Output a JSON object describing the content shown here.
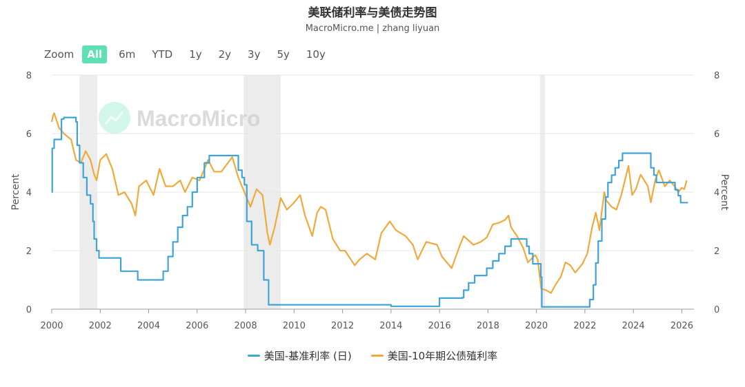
{
  "header": {
    "title": "美联储利率与美债走势图",
    "subtitle": "MacroMicro.me | zhang liyuan"
  },
  "zoom": {
    "label": "Zoom",
    "buttons": [
      "All",
      "6m",
      "YTD",
      "1y",
      "2y",
      "3y",
      "5y",
      "10y"
    ],
    "active": "All"
  },
  "watermark": "MacroMicro",
  "chart_data": {
    "type": "line",
    "title": "美联储利率与美债走势图",
    "subtitle": "MacroMicro.me | zhang liyuan",
    "ylabel": "Percent",
    "ylabel_right": "Percent",
    "xlim": [
      2000,
      2026.5
    ],
    "ylim": [
      0,
      8
    ],
    "x_ticks": [
      "2000",
      "2002",
      "2004",
      "2006",
      "2008",
      "2010",
      "2012",
      "2014",
      "2016",
      "2018",
      "2020",
      "2022",
      "2024",
      "2026"
    ],
    "y_ticks": [
      "0",
      "2",
      "4",
      "6",
      "8"
    ],
    "grid": true,
    "legend_position": "bottom-center",
    "recessions": [
      [
        2001.15,
        2001.88
      ],
      [
        2007.92,
        2009.45
      ],
      [
        2020.15,
        2020.35
      ]
    ],
    "series": [
      {
        "name": "美国-基准利率 (日)",
        "color": "#3ea4d8",
        "step": true,
        "points": [
          [
            2000.0,
            4.0
          ],
          [
            2000.02,
            5.5
          ],
          [
            2000.1,
            5.8
          ],
          [
            2000.4,
            6.5
          ],
          [
            2000.5,
            6.55
          ],
          [
            2001.0,
            6.4
          ],
          [
            2001.05,
            5.6
          ],
          [
            2001.15,
            5.0
          ],
          [
            2001.3,
            4.5
          ],
          [
            2001.45,
            3.9
          ],
          [
            2001.6,
            3.6
          ],
          [
            2001.7,
            3.0
          ],
          [
            2001.75,
            2.4
          ],
          [
            2001.85,
            2.0
          ],
          [
            2001.95,
            1.75
          ],
          [
            2002.8,
            1.75
          ],
          [
            2002.85,
            1.3
          ],
          [
            2003.5,
            1.3
          ],
          [
            2003.55,
            1.0
          ],
          [
            2004.5,
            1.0
          ],
          [
            2004.6,
            1.3
          ],
          [
            2004.8,
            1.8
          ],
          [
            2005.0,
            2.3
          ],
          [
            2005.2,
            2.8
          ],
          [
            2005.4,
            3.2
          ],
          [
            2005.6,
            3.5
          ],
          [
            2005.8,
            4.0
          ],
          [
            2006.0,
            4.5
          ],
          [
            2006.3,
            5.0
          ],
          [
            2006.5,
            5.25
          ],
          [
            2007.6,
            5.25
          ],
          [
            2007.7,
            4.75
          ],
          [
            2007.85,
            4.5
          ],
          [
            2007.95,
            4.25
          ],
          [
            2008.05,
            3.0
          ],
          [
            2008.25,
            2.2
          ],
          [
            2008.5,
            2.0
          ],
          [
            2008.75,
            1.0
          ],
          [
            2008.95,
            0.15
          ],
          [
            2009.5,
            0.15
          ],
          [
            2010.0,
            0.15
          ],
          [
            2012.0,
            0.15
          ],
          [
            2014.0,
            0.1
          ],
          [
            2015.95,
            0.1
          ],
          [
            2016.0,
            0.38
          ],
          [
            2016.95,
            0.4
          ],
          [
            2017.0,
            0.65
          ],
          [
            2017.2,
            0.9
          ],
          [
            2017.45,
            1.15
          ],
          [
            2017.95,
            1.4
          ],
          [
            2018.2,
            1.65
          ],
          [
            2018.45,
            1.9
          ],
          [
            2018.7,
            2.15
          ],
          [
            2018.95,
            2.4
          ],
          [
            2019.55,
            2.4
          ],
          [
            2019.6,
            2.15
          ],
          [
            2019.7,
            1.9
          ],
          [
            2019.85,
            1.55
          ],
          [
            2020.15,
            1.55
          ],
          [
            2020.18,
            1.1
          ],
          [
            2020.22,
            0.08
          ],
          [
            2022.15,
            0.08
          ],
          [
            2022.2,
            0.33
          ],
          [
            2022.35,
            0.83
          ],
          [
            2022.45,
            1.58
          ],
          [
            2022.55,
            2.33
          ],
          [
            2022.7,
            3.08
          ],
          [
            2022.85,
            3.83
          ],
          [
            2022.95,
            4.33
          ],
          [
            2023.1,
            4.58
          ],
          [
            2023.25,
            4.83
          ],
          [
            2023.4,
            5.08
          ],
          [
            2023.55,
            5.33
          ],
          [
            2024.7,
            5.33
          ],
          [
            2024.72,
            4.83
          ],
          [
            2024.85,
            4.58
          ],
          [
            2024.95,
            4.33
          ],
          [
            2025.7,
            4.33
          ],
          [
            2025.72,
            4.08
          ],
          [
            2025.85,
            3.88
          ],
          [
            2025.95,
            3.64
          ],
          [
            2026.25,
            3.64
          ]
        ]
      },
      {
        "name": "美国-10年期公债殖利率",
        "color": "#f0a93a",
        "step": false,
        "points": [
          [
            2000.0,
            6.4
          ],
          [
            2000.05,
            6.6
          ],
          [
            2000.1,
            6.7
          ],
          [
            2000.3,
            6.2
          ],
          [
            2000.5,
            6.0
          ],
          [
            2000.8,
            5.8
          ],
          [
            2001.0,
            5.1
          ],
          [
            2001.2,
            5.0
          ],
          [
            2001.4,
            5.4
          ],
          [
            2001.6,
            5.1
          ],
          [
            2001.75,
            4.6
          ],
          [
            2001.85,
            4.4
          ],
          [
            2002.0,
            5.1
          ],
          [
            2002.25,
            5.3
          ],
          [
            2002.5,
            4.8
          ],
          [
            2002.75,
            3.9
          ],
          [
            2003.0,
            4.0
          ],
          [
            2003.3,
            3.6
          ],
          [
            2003.45,
            3.2
          ],
          [
            2003.6,
            4.2
          ],
          [
            2003.9,
            4.4
          ],
          [
            2004.2,
            3.9
          ],
          [
            2004.45,
            4.8
          ],
          [
            2004.7,
            4.2
          ],
          [
            2005.0,
            4.2
          ],
          [
            2005.3,
            4.4
          ],
          [
            2005.5,
            4.0
          ],
          [
            2005.8,
            4.5
          ],
          [
            2006.1,
            4.4
          ],
          [
            2006.45,
            5.1
          ],
          [
            2006.7,
            4.7
          ],
          [
            2007.0,
            4.7
          ],
          [
            2007.45,
            5.2
          ],
          [
            2007.7,
            4.5
          ],
          [
            2007.95,
            4.0
          ],
          [
            2008.2,
            3.5
          ],
          [
            2008.45,
            4.1
          ],
          [
            2008.7,
            3.9
          ],
          [
            2008.9,
            2.6
          ],
          [
            2009.0,
            2.2
          ],
          [
            2009.2,
            2.8
          ],
          [
            2009.45,
            3.8
          ],
          [
            2009.7,
            3.4
          ],
          [
            2009.95,
            3.6
          ],
          [
            2010.25,
            3.9
          ],
          [
            2010.45,
            3.2
          ],
          [
            2010.75,
            2.5
          ],
          [
            2010.95,
            3.3
          ],
          [
            2011.1,
            3.5
          ],
          [
            2011.3,
            3.4
          ],
          [
            2011.6,
            2.4
          ],
          [
            2011.9,
            2.0
          ],
          [
            2012.1,
            2.0
          ],
          [
            2012.5,
            1.5
          ],
          [
            2012.7,
            1.7
          ],
          [
            2013.0,
            1.9
          ],
          [
            2013.35,
            1.7
          ],
          [
            2013.6,
            2.6
          ],
          [
            2013.95,
            3.0
          ],
          [
            2014.2,
            2.7
          ],
          [
            2014.6,
            2.5
          ],
          [
            2014.9,
            2.2
          ],
          [
            2015.1,
            1.7
          ],
          [
            2015.45,
            2.3
          ],
          [
            2015.9,
            2.2
          ],
          [
            2016.1,
            1.8
          ],
          [
            2016.5,
            1.4
          ],
          [
            2016.85,
            2.2
          ],
          [
            2017.0,
            2.5
          ],
          [
            2017.4,
            2.2
          ],
          [
            2017.7,
            2.3
          ],
          [
            2017.95,
            2.45
          ],
          [
            2018.2,
            2.9
          ],
          [
            2018.45,
            2.95
          ],
          [
            2018.7,
            3.05
          ],
          [
            2018.85,
            3.2
          ],
          [
            2018.95,
            2.8
          ],
          [
            2019.2,
            2.5
          ],
          [
            2019.45,
            2.1
          ],
          [
            2019.65,
            1.6
          ],
          [
            2019.95,
            1.85
          ],
          [
            2020.05,
            1.7
          ],
          [
            2020.2,
            0.7
          ],
          [
            2020.4,
            0.65
          ],
          [
            2020.6,
            0.55
          ],
          [
            2020.8,
            0.85
          ],
          [
            2021.0,
            1.1
          ],
          [
            2021.2,
            1.6
          ],
          [
            2021.4,
            1.5
          ],
          [
            2021.6,
            1.25
          ],
          [
            2021.9,
            1.55
          ],
          [
            2022.1,
            1.9
          ],
          [
            2022.3,
            2.8
          ],
          [
            2022.45,
            3.3
          ],
          [
            2022.6,
            2.7
          ],
          [
            2022.8,
            4.0
          ],
          [
            2022.9,
            3.7
          ],
          [
            2023.1,
            3.5
          ],
          [
            2023.3,
            3.4
          ],
          [
            2023.5,
            3.9
          ],
          [
            2023.8,
            4.9
          ],
          [
            2023.95,
            3.9
          ],
          [
            2024.1,
            4.1
          ],
          [
            2024.3,
            4.6
          ],
          [
            2024.6,
            4.2
          ],
          [
            2024.72,
            3.65
          ],
          [
            2024.9,
            4.4
          ],
          [
            2025.05,
            4.75
          ],
          [
            2025.3,
            4.2
          ],
          [
            2025.5,
            4.4
          ],
          [
            2025.7,
            4.2
          ],
          [
            2025.85,
            4.0
          ],
          [
            2026.0,
            4.15
          ],
          [
            2026.1,
            4.1
          ],
          [
            2026.2,
            4.4
          ]
        ]
      }
    ]
  }
}
